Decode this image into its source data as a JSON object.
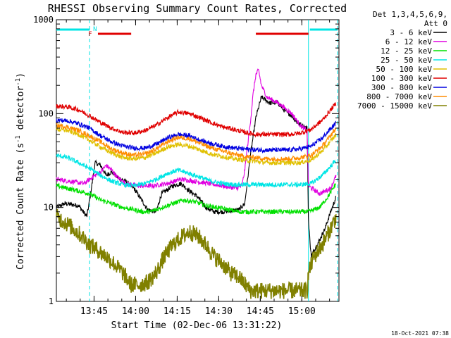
{
  "chart_data": {
    "type": "line",
    "title": "RHESSI Observing Summary Count Rates, Corrected",
    "xlabel": "Start Time (02-Dec-06 13:31:22)",
    "ylabel_main": "Corrected Count Rate (s",
    "ylabel_sup1": "-1",
    "ylabel_mid": " detector",
    "ylabel_sup2": "-1",
    "ylabel_end": ")",
    "y_scale": "log",
    "ylim": [
      1,
      1000
    ],
    "xlim_minutes": [
      0,
      102
    ],
    "x_ticks": [
      {
        "label": "13:45",
        "t": 13.6
      },
      {
        "label": "14:00",
        "t": 28.6
      },
      {
        "label": "14:15",
        "t": 43.6
      },
      {
        "label": "14:30",
        "t": 58.6
      },
      {
        "label": "14:45",
        "t": 73.6
      },
      {
        "label": "15:00",
        "t": 88.6
      }
    ],
    "y_ticks": [
      {
        "label": "1",
        "v": 1
      },
      {
        "label": "10",
        "v": 10
      },
      {
        "label": "100",
        "v": 100
      },
      {
        "label": "1000",
        "v": 1000
      }
    ],
    "legend_header": [
      "Det 1,3,4,5,6,9,",
      "Att 0"
    ],
    "legend_placement": "top-right",
    "flags": {
      "N_label": "N",
      "F_label": "F",
      "night_color": "#00e5e5",
      "flare_color": "#e00000",
      "night_bars": [
        [
          0,
          12
        ],
        [
          91.5,
          101.5
        ]
      ],
      "flare_bars": [
        [
          15,
          27
        ],
        [
          72,
          91
        ]
      ],
      "night_lines": [
        12,
        91,
        101.5
      ]
    },
    "series": [
      {
        "name": "3 - 6 keV",
        "color": "#000000",
        "points": [
          [
            0,
            10
          ],
          [
            3,
            11
          ],
          [
            8,
            10.5
          ],
          [
            11,
            8
          ],
          [
            12,
            12
          ],
          [
            14,
            30
          ],
          [
            16,
            28
          ],
          [
            18,
            22
          ],
          [
            20,
            24
          ],
          [
            22,
            21
          ],
          [
            25,
            19
          ],
          [
            28,
            16
          ],
          [
            30,
            13
          ],
          [
            33,
            9.5
          ],
          [
            36,
            9
          ],
          [
            38,
            14
          ],
          [
            42,
            17
          ],
          [
            45,
            18
          ],
          [
            48,
            15
          ],
          [
            51,
            13
          ],
          [
            54,
            10
          ],
          [
            57,
            9
          ],
          [
            60,
            9
          ],
          [
            63,
            9.2
          ],
          [
            66,
            9.5
          ],
          [
            68,
            11
          ],
          [
            70,
            35
          ],
          [
            72,
            90
          ],
          [
            74,
            150
          ],
          [
            77,
            130
          ],
          [
            80,
            130
          ],
          [
            82,
            110
          ],
          [
            85,
            95
          ],
          [
            87,
            80
          ],
          [
            90.5,
            70
          ],
          [
            91,
            7
          ],
          [
            92,
            3
          ],
          [
            93,
            3.5
          ],
          [
            95,
            4.5
          ],
          [
            97,
            6
          ],
          [
            99,
            9
          ],
          [
            101,
            13
          ]
        ]
      },
      {
        "name": "6 - 12 keV",
        "color": "#e000e0",
        "points": [
          [
            0,
            20
          ],
          [
            5,
            19
          ],
          [
            10,
            18
          ],
          [
            12,
            20
          ],
          [
            14,
            22
          ],
          [
            16,
            24
          ],
          [
            18,
            28
          ],
          [
            20,
            25
          ],
          [
            22,
            21
          ],
          [
            25,
            18
          ],
          [
            30,
            17
          ],
          [
            35,
            17
          ],
          [
            40,
            18
          ],
          [
            45,
            20
          ],
          [
            50,
            19
          ],
          [
            55,
            18
          ],
          [
            60,
            17
          ],
          [
            65,
            16
          ],
          [
            67,
            17
          ],
          [
            68,
            25
          ],
          [
            70,
            80
          ],
          [
            71,
            160
          ],
          [
            72,
            260
          ],
          [
            73,
            290
          ],
          [
            74,
            200
          ],
          [
            76,
            150
          ],
          [
            80,
            130
          ],
          [
            85,
            100
          ],
          [
            88,
            75
          ],
          [
            90.5,
            65
          ],
          [
            91,
            17
          ],
          [
            95,
            14
          ],
          [
            99,
            16
          ],
          [
            101,
            22
          ]
        ]
      },
      {
        "name": "12 - 25 keV",
        "color": "#00e000",
        "points": [
          [
            0,
            17
          ],
          [
            4,
            16
          ],
          [
            8,
            15
          ],
          [
            12,
            14
          ],
          [
            16,
            12
          ],
          [
            20,
            11
          ],
          [
            24,
            10
          ],
          [
            28,
            9.5
          ],
          [
            31,
            9
          ],
          [
            34,
            9
          ],
          [
            38,
            10
          ],
          [
            42,
            11
          ],
          [
            46,
            12
          ],
          [
            50,
            11.5
          ],
          [
            54,
            10.5
          ],
          [
            58,
            10
          ],
          [
            62,
            9.5
          ],
          [
            66,
            9
          ],
          [
            70,
            9
          ],
          [
            76,
            9
          ],
          [
            82,
            9
          ],
          [
            88,
            9
          ],
          [
            91,
            9
          ],
          [
            95,
            10
          ],
          [
            98,
            13
          ],
          [
            101,
            18
          ]
        ]
      },
      {
        "name": "25 - 50 keV",
        "color": "#00e5e5",
        "points": [
          [
            0,
            36
          ],
          [
            4,
            34
          ],
          [
            8,
            30
          ],
          [
            12,
            26
          ],
          [
            16,
            22
          ],
          [
            20,
            19
          ],
          [
            24,
            17.5
          ],
          [
            28,
            17
          ],
          [
            32,
            18
          ],
          [
            36,
            20
          ],
          [
            40,
            23
          ],
          [
            44,
            25
          ],
          [
            48,
            23
          ],
          [
            52,
            21
          ],
          [
            56,
            19
          ],
          [
            60,
            18
          ],
          [
            64,
            17.5
          ],
          [
            68,
            17.5
          ],
          [
            72,
            17.5
          ],
          [
            76,
            17.5
          ],
          [
            80,
            17.5
          ],
          [
            84,
            17.5
          ],
          [
            88,
            17.5
          ],
          [
            92,
            18
          ],
          [
            96,
            22
          ],
          [
            101,
            32
          ]
        ]
      },
      {
        "name": "50 - 100 keV",
        "color": "#e0c000",
        "points": [
          [
            0,
            68
          ],
          [
            4,
            66
          ],
          [
            8,
            60
          ],
          [
            12,
            52
          ],
          [
            16,
            44
          ],
          [
            20,
            38
          ],
          [
            24,
            34
          ],
          [
            28,
            33
          ],
          [
            32,
            34
          ],
          [
            36,
            38
          ],
          [
            40,
            44
          ],
          [
            44,
            47
          ],
          [
            48,
            45
          ],
          [
            52,
            41
          ],
          [
            56,
            37
          ],
          [
            60,
            35
          ],
          [
            64,
            33
          ],
          [
            68,
            32
          ],
          [
            72,
            31
          ],
          [
            76,
            30
          ],
          [
            80,
            30
          ],
          [
            84,
            30
          ],
          [
            88,
            30
          ],
          [
            92,
            32
          ],
          [
            96,
            40
          ],
          [
            101,
            60
          ]
        ]
      },
      {
        "name": "100 - 300 keV",
        "color": "#e00000",
        "points": [
          [
            0,
            120
          ],
          [
            4,
            118
          ],
          [
            8,
            110
          ],
          [
            12,
            95
          ],
          [
            16,
            80
          ],
          [
            20,
            70
          ],
          [
            24,
            63
          ],
          [
            28,
            62
          ],
          [
            32,
            66
          ],
          [
            36,
            75
          ],
          [
            40,
            90
          ],
          [
            44,
            104
          ],
          [
            48,
            100
          ],
          [
            52,
            90
          ],
          [
            56,
            80
          ],
          [
            60,
            72
          ],
          [
            64,
            68
          ],
          [
            68,
            63
          ],
          [
            72,
            60
          ],
          [
            76,
            60
          ],
          [
            80,
            60
          ],
          [
            84,
            60
          ],
          [
            88,
            62
          ],
          [
            92,
            68
          ],
          [
            96,
            85
          ],
          [
            101,
            130
          ]
        ]
      },
      {
        "name": "300 - 800 keV",
        "color": "#0000e0",
        "points": [
          [
            0,
            85
          ],
          [
            4,
            84
          ],
          [
            8,
            78
          ],
          [
            12,
            70
          ],
          [
            16,
            58
          ],
          [
            20,
            50
          ],
          [
            24,
            45
          ],
          [
            28,
            43
          ],
          [
            32,
            43
          ],
          [
            36,
            47
          ],
          [
            40,
            55
          ],
          [
            44,
            60
          ],
          [
            48,
            58
          ],
          [
            52,
            52
          ],
          [
            56,
            48
          ],
          [
            60,
            45
          ],
          [
            64,
            43
          ],
          [
            68,
            42
          ],
          [
            72,
            41
          ],
          [
            76,
            41
          ],
          [
            80,
            41
          ],
          [
            84,
            41
          ],
          [
            88,
            42
          ],
          [
            92,
            45
          ],
          [
            96,
            55
          ],
          [
            101,
            80
          ]
        ]
      },
      {
        "name": "800 - 7000 keV",
        "color": "#ff8c00",
        "points": [
          [
            0,
            75
          ],
          [
            4,
            72
          ],
          [
            8,
            66
          ],
          [
            12,
            58
          ],
          [
            16,
            50
          ],
          [
            20,
            42
          ],
          [
            24,
            38
          ],
          [
            28,
            36
          ],
          [
            32,
            37
          ],
          [
            36,
            42
          ],
          [
            40,
            50
          ],
          [
            44,
            56
          ],
          [
            48,
            54
          ],
          [
            52,
            48
          ],
          [
            56,
            43
          ],
          [
            60,
            40
          ],
          [
            64,
            37
          ],
          [
            68,
            35
          ],
          [
            72,
            34
          ],
          [
            76,
            33
          ],
          [
            80,
            33
          ],
          [
            84,
            33
          ],
          [
            88,
            34
          ],
          [
            92,
            36
          ],
          [
            96,
            45
          ],
          [
            101,
            70
          ]
        ]
      },
      {
        "name": "7000 - 15000 keV",
        "color": "#808000",
        "points": [
          [
            0,
            8
          ],
          [
            3,
            7
          ],
          [
            6,
            6
          ],
          [
            9,
            5
          ],
          [
            12,
            4
          ],
          [
            15,
            3.5
          ],
          [
            18,
            3
          ],
          [
            21,
            2.5
          ],
          [
            24,
            2
          ],
          [
            27,
            1.5
          ],
          [
            30,
            1.5
          ],
          [
            33,
            1.6
          ],
          [
            36,
            2
          ],
          [
            39,
            3
          ],
          [
            42,
            4
          ],
          [
            45,
            4.8
          ],
          [
            48,
            5.5
          ],
          [
            51,
            5
          ],
          [
            54,
            4
          ],
          [
            57,
            3
          ],
          [
            60,
            2.5
          ],
          [
            63,
            2
          ],
          [
            66,
            1.8
          ],
          [
            70,
            1.3
          ],
          [
            74,
            1.3
          ],
          [
            78,
            1.3
          ],
          [
            82,
            1.3
          ],
          [
            86,
            1.3
          ],
          [
            90.5,
            1.3
          ],
          [
            91,
            2
          ],
          [
            93,
            3
          ],
          [
            96,
            4
          ],
          [
            99,
            6
          ],
          [
            101,
            8
          ]
        ]
      }
    ]
  },
  "footer": {
    "timestamp": "18-Oct-2021 07:38"
  }
}
